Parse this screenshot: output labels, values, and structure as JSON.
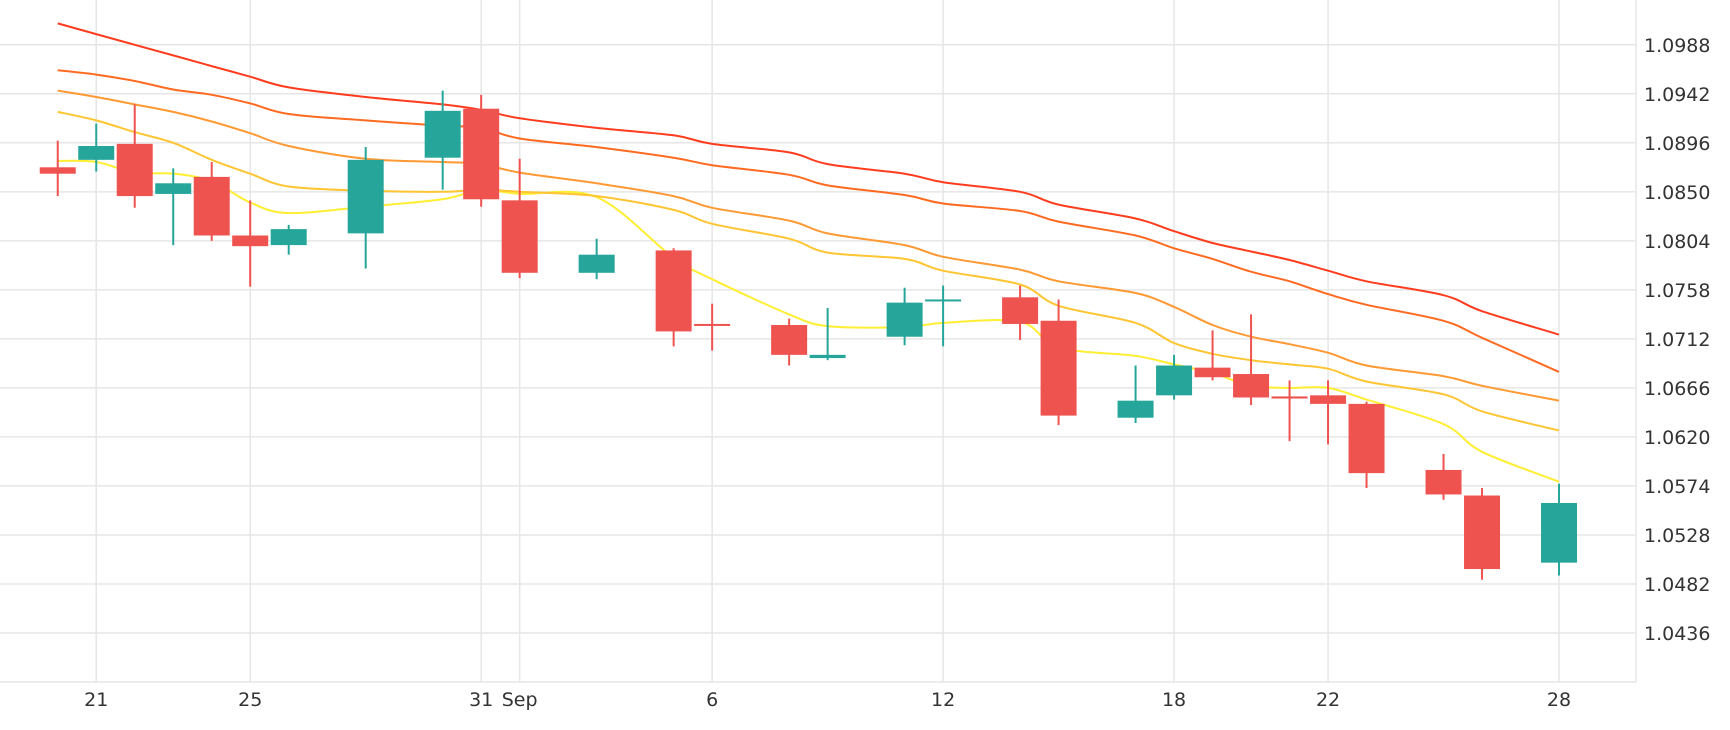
{
  "chart_data": {
    "type": "candlestick",
    "title": "",
    "xlabel": "",
    "ylabel": "",
    "ylim": [
      1.039,
      1.103
    ],
    "y_ticks": [
      "1.0436",
      "1.0482",
      "1.0528",
      "1.0574",
      "1.0620",
      "1.0666",
      "1.0712",
      "1.0758",
      "1.0804",
      "1.0850",
      "1.0896",
      "1.0942",
      "1.0988"
    ],
    "x_ticks": [
      {
        "label": "21",
        "date": "2023-08-21"
      },
      {
        "label": "25",
        "date": "2023-08-25"
      },
      {
        "label": "31",
        "date": "2023-08-31"
      },
      {
        "label": "Sep",
        "date": "2023-09-01"
      },
      {
        "label": "6",
        "date": "2023-09-06"
      },
      {
        "label": "12",
        "date": "2023-09-12"
      },
      {
        "label": "18",
        "date": "2023-09-18"
      },
      {
        "label": "22",
        "date": "2023-09-22"
      },
      {
        "label": "28",
        "date": "2023-09-28"
      }
    ],
    "x_range": [
      "2023-08-18T12:00",
      "2023-09-30"
    ],
    "grid": true,
    "colors": {
      "up": "#26a69a",
      "down": "#ef5350",
      "grid": "#e6e6e6"
    },
    "candles": [
      {
        "date": "2023-08-20",
        "open": 1.0873,
        "high": 1.0898,
        "low": 1.0846,
        "close": 1.0867
      },
      {
        "date": "2023-08-21",
        "open": 1.088,
        "high": 1.0914,
        "low": 1.0869,
        "close": 1.0893
      },
      {
        "date": "2023-08-22",
        "open": 1.0895,
        "high": 1.0932,
        "low": 1.0835,
        "close": 1.0846
      },
      {
        "date": "2023-08-23",
        "open": 1.0848,
        "high": 1.0872,
        "low": 1.08,
        "close": 1.0858
      },
      {
        "date": "2023-08-24",
        "open": 1.0864,
        "high": 1.0878,
        "low": 1.0804,
        "close": 1.0809
      },
      {
        "date": "2023-08-25",
        "open": 1.0809,
        "high": 1.0842,
        "low": 1.0761,
        "close": 1.0799
      },
      {
        "date": "2023-08-26",
        "open": 1.08,
        "high": 1.0819,
        "low": 1.0791,
        "close": 1.0815
      },
      {
        "date": "2023-08-28",
        "open": 1.0811,
        "high": 1.0892,
        "low": 1.0778,
        "close": 1.088
      },
      {
        "date": "2023-08-30",
        "open": 1.0882,
        "high": 1.0945,
        "low": 1.0852,
        "close": 1.0926
      },
      {
        "date": "2023-08-31",
        "open": 1.0928,
        "high": 1.0941,
        "low": 1.0836,
        "close": 1.0843
      },
      {
        "date": "2023-09-01",
        "open": 1.0842,
        "high": 1.0881,
        "low": 1.0769,
        "close": 1.0774
      },
      {
        "date": "2023-09-03",
        "open": 1.0774,
        "high": 1.0806,
        "low": 1.0768,
        "close": 1.0791
      },
      {
        "date": "2023-09-05",
        "open": 1.0795,
        "high": 1.0797,
        "low": 1.0705,
        "close": 1.0719
      },
      {
        "date": "2023-09-06",
        "open": 1.0726,
        "high": 1.0745,
        "low": 1.0701,
        "close": 1.0725
      },
      {
        "date": "2023-09-08",
        "open": 1.0725,
        "high": 1.0731,
        "low": 1.0687,
        "close": 1.0697
      },
      {
        "date": "2023-09-09",
        "open": 1.0694,
        "high": 1.0741,
        "low": 1.0692,
        "close": 1.0697
      },
      {
        "date": "2023-09-11",
        "open": 1.0714,
        "high": 1.076,
        "low": 1.0706,
        "close": 1.0746
      },
      {
        "date": "2023-09-12",
        "open": 1.0748,
        "high": 1.0762,
        "low": 1.0705,
        "close": 1.0749
      },
      {
        "date": "2023-09-14",
        "open": 1.0751,
        "high": 1.0762,
        "low": 1.0711,
        "close": 1.0726
      },
      {
        "date": "2023-09-15",
        "open": 1.0729,
        "high": 1.0749,
        "low": 1.0631,
        "close": 1.064
      },
      {
        "date": "2023-09-17",
        "open": 1.0638,
        "high": 1.0687,
        "low": 1.0633,
        "close": 1.0654
      },
      {
        "date": "2023-09-18",
        "open": 1.0659,
        "high": 1.0697,
        "low": 1.0655,
        "close": 1.0687
      },
      {
        "date": "2023-09-19",
        "open": 1.0685,
        "high": 1.072,
        "low": 1.0673,
        "close": 1.0676
      },
      {
        "date": "2023-09-20",
        "open": 1.0679,
        "high": 1.0735,
        "low": 1.065,
        "close": 1.0657
      },
      {
        "date": "2023-09-21",
        "open": 1.0658,
        "high": 1.0673,
        "low": 1.0616,
        "close": 1.0656
      },
      {
        "date": "2023-09-22",
        "open": 1.0659,
        "high": 1.0673,
        "low": 1.0613,
        "close": 1.0651
      },
      {
        "date": "2023-09-23",
        "open": 1.0651,
        "high": 1.0653,
        "low": 1.0572,
        "close": 1.0586
      },
      {
        "date": "2023-09-25",
        "open": 1.0589,
        "high": 1.0604,
        "low": 1.0561,
        "close": 1.0566
      },
      {
        "date": "2023-09-26",
        "open": 1.0565,
        "high": 1.0572,
        "low": 1.0486,
        "close": 1.0496
      },
      {
        "date": "2023-09-28",
        "open": 1.0502,
        "high": 1.0576,
        "low": 1.049,
        "close": 1.0558
      }
    ],
    "lines": [
      {
        "color": "#ffee33",
        "values": [
          1.0879,
          1.0878,
          1.0868,
          1.0867,
          1.086,
          1.084,
          1.083,
          1.0836,
          1.0843,
          1.0852,
          1.0848,
          1.0845,
          1.0788,
          1.0768,
          1.0735,
          1.0724,
          1.0723,
          1.0727,
          1.0728,
          1.0704,
          1.0696,
          1.0688,
          1.068,
          1.0668,
          1.0666,
          1.0666,
          1.0655,
          1.0632,
          1.0606,
          1.0578
        ]
      },
      {
        "color": "#ffc533",
        "values": [
          1.0925,
          1.0917,
          1.0906,
          1.0896,
          1.088,
          1.0867,
          1.0855,
          1.0851,
          1.085,
          1.0852,
          1.085,
          1.0846,
          1.0833,
          1.082,
          1.0806,
          1.0793,
          1.0787,
          1.0776,
          1.0763,
          1.0743,
          1.0727,
          1.0708,
          1.0698,
          1.0692,
          1.0688,
          1.0684,
          1.0672,
          1.066,
          1.0644,
          1.0626
        ]
      },
      {
        "color": "#ff9933",
        "values": [
          1.0945,
          1.0939,
          1.0932,
          1.0925,
          1.0916,
          1.0905,
          1.0893,
          1.0881,
          1.0878,
          1.0876,
          1.0868,
          1.0858,
          1.0846,
          1.0835,
          1.0823,
          1.0811,
          1.08,
          1.0789,
          1.0777,
          1.0766,
          1.0755,
          1.0742,
          1.0725,
          1.0714,
          1.0707,
          1.0699,
          1.0687,
          1.0677,
          1.0668,
          1.0654
        ]
      },
      {
        "color": "#ff6a21",
        "values": [
          1.0964,
          1.096,
          1.0954,
          1.0946,
          1.0941,
          1.0933,
          1.0923,
          1.0917,
          1.0912,
          1.091,
          1.09,
          1.0892,
          1.0882,
          1.0875,
          1.0866,
          1.0856,
          1.0847,
          1.0839,
          1.0832,
          1.0822,
          1.0809,
          1.0797,
          1.0787,
          1.0775,
          1.0766,
          1.0754,
          1.0744,
          1.0729,
          1.0713,
          1.0681
        ]
      },
      {
        "color": "#ff3d1e",
        "values": [
          1.1008,
          1.0998,
          1.0988,
          1.0978,
          1.0968,
          1.0958,
          1.0948,
          1.0939,
          1.0932,
          1.0927,
          1.0919,
          1.091,
          1.0903,
          1.0895,
          1.0887,
          1.0876,
          1.0867,
          1.0859,
          1.085,
          1.0838,
          1.0825,
          1.0813,
          1.0802,
          1.0794,
          1.0786,
          1.0776,
          1.0766,
          1.0753,
          1.0738,
          1.0716
        ]
      }
    ]
  }
}
